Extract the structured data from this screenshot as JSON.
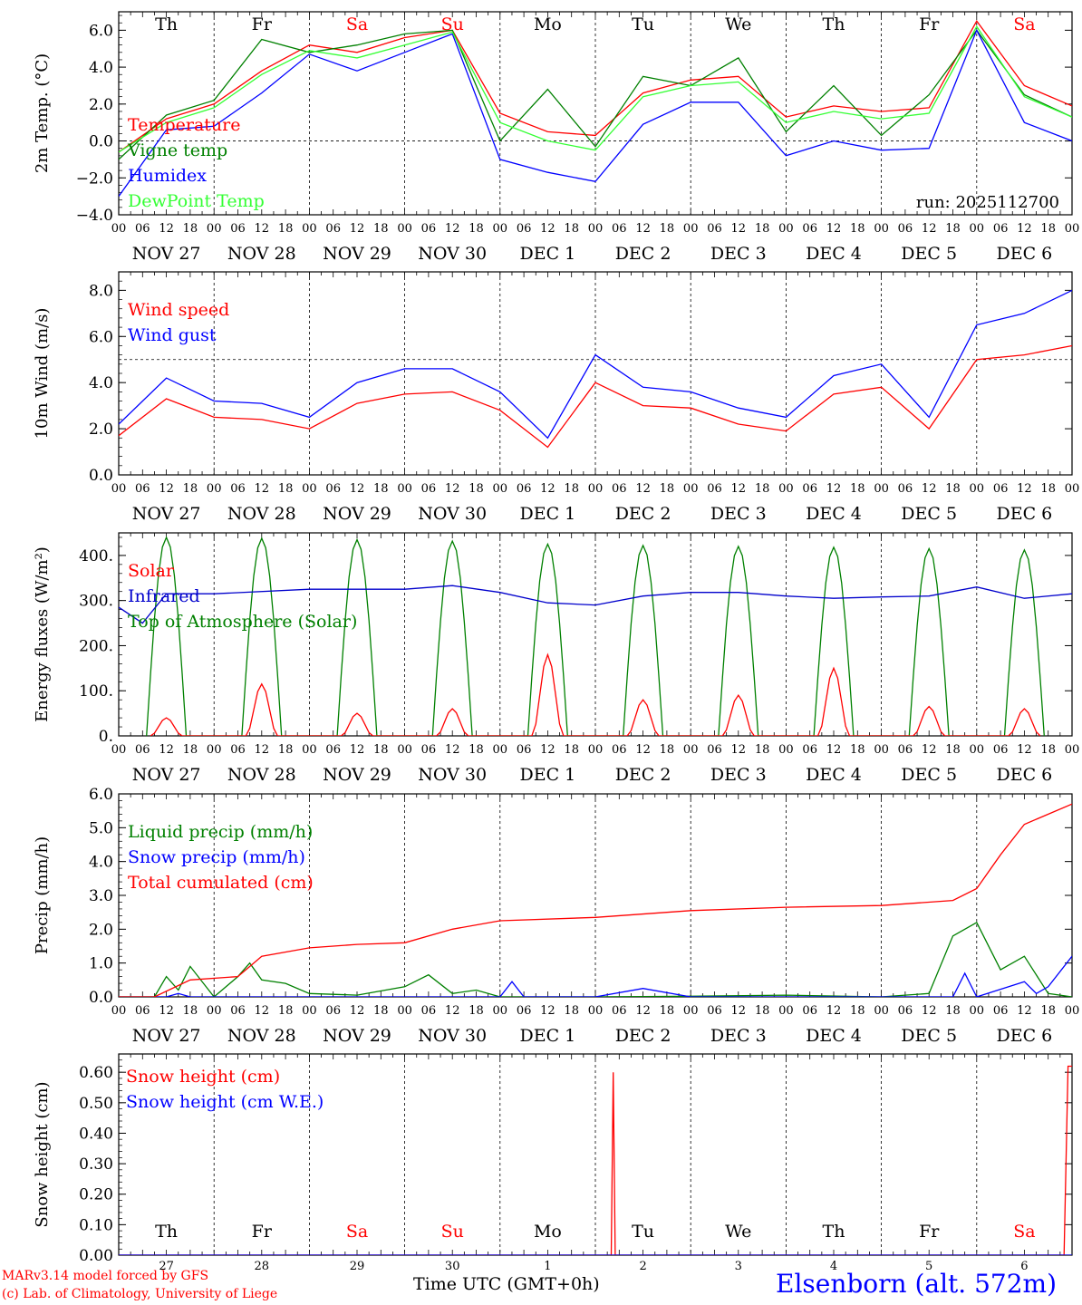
{
  "chart_data": [
    {
      "id": "temp",
      "type": "line",
      "ylabel": "2m Temp. (°C)",
      "ylim": [
        -4.0,
        7.0
      ],
      "yticks": [
        -4,
        -2,
        0,
        2,
        4,
        6
      ],
      "ytick_labels": [
        "−4.0",
        "−2.0",
        "0.0",
        "2.0",
        "4.0",
        "6.0"
      ],
      "ref_line": 0.0,
      "day_labels": [
        "Th",
        "Fr",
        "Sa",
        "Su",
        "Mo",
        "Tu",
        "We",
        "Th",
        "Fr",
        "Sa"
      ],
      "weekend_days": [
        2,
        3,
        9
      ],
      "date_labels": [
        "NOV 27",
        "NOV 28",
        "NOV 29",
        "NOV 30",
        "DEC  1",
        "DEC  2",
        "DEC  3",
        "DEC  4",
        "DEC  5",
        "DEC  6"
      ],
      "hour_labels": [
        "00",
        "06",
        "12",
        "18"
      ],
      "annotation": "run: 2025112700",
      "x_hours": [
        0,
        12,
        24,
        36,
        48,
        60,
        72,
        84,
        96,
        108,
        120,
        132,
        144,
        156,
        168,
        180,
        192,
        204,
        216,
        228,
        240
      ],
      "series": [
        {
          "name": "Temperature",
          "color": "#ff0000",
          "values": [
            -0.6,
            1.2,
            2.0,
            3.8,
            5.2,
            4.8,
            5.6,
            6.0,
            1.5,
            0.5,
            0.3,
            2.6,
            3.3,
            3.5,
            1.3,
            1.9,
            1.6,
            1.8,
            6.5,
            3.0,
            1.9
          ]
        },
        {
          "name": "Vigne temp",
          "color": "#008000",
          "values": [
            -1.0,
            1.4,
            2.2,
            5.5,
            4.8,
            5.2,
            5.8,
            6.0,
            0.0,
            2.8,
            -0.3,
            3.5,
            3.0,
            4.5,
            0.5,
            3.0,
            0.3,
            2.5,
            6.0,
            2.5,
            1.3
          ]
        },
        {
          "name": "Humidex",
          "color": "#0000ff",
          "values": [
            -3.0,
            0.6,
            0.8,
            2.6,
            4.7,
            3.8,
            4.8,
            5.8,
            -1.0,
            -1.7,
            -2.2,
            0.9,
            2.1,
            2.1,
            -0.8,
            0.0,
            -0.5,
            -0.4,
            6.0,
            1.0,
            0.0
          ]
        },
        {
          "name": "DewPoint Temp",
          "color": "#33ff33",
          "values": [
            -0.6,
            1.0,
            1.8,
            3.6,
            4.9,
            4.5,
            5.2,
            5.9,
            1.0,
            0.0,
            -0.5,
            2.4,
            3.0,
            3.2,
            1.0,
            1.6,
            1.2,
            1.5,
            6.2,
            2.4,
            1.3
          ]
        }
      ]
    },
    {
      "id": "wind",
      "type": "line",
      "ylabel": "10m Wind (m/s)",
      "ylim": [
        0.0,
        8.8
      ],
      "yticks": [
        0,
        2,
        4,
        6,
        8
      ],
      "ytick_labels": [
        "0.0",
        "2.0",
        "4.0",
        "6.0",
        "8.0"
      ],
      "ref_line": 5.0,
      "date_labels": [
        "NOV 27",
        "NOV 28",
        "NOV 29",
        "NOV 30",
        "DEC  1",
        "DEC  2",
        "DEC  3",
        "DEC  4",
        "DEC  5",
        "DEC  6"
      ],
      "hour_labels": [
        "00",
        "06",
        "12",
        "18"
      ],
      "x_hours": [
        0,
        12,
        24,
        36,
        48,
        60,
        72,
        84,
        96,
        108,
        120,
        132,
        144,
        156,
        168,
        180,
        192,
        204,
        216,
        228,
        240
      ],
      "series": [
        {
          "name": "Wind speed",
          "color": "#ff0000",
          "values": [
            1.7,
            3.3,
            2.5,
            2.4,
            2.0,
            3.1,
            3.5,
            3.6,
            2.8,
            1.2,
            4.0,
            3.0,
            2.9,
            2.2,
            1.9,
            3.5,
            3.8,
            2.0,
            5.0,
            5.2,
            5.6
          ]
        },
        {
          "name": "Wind gust",
          "color": "#0000ff",
          "values": [
            2.2,
            4.2,
            3.2,
            3.1,
            2.5,
            4.0,
            4.6,
            4.6,
            3.6,
            1.6,
            5.2,
            3.8,
            3.6,
            2.9,
            2.5,
            4.3,
            4.8,
            2.5,
            6.5,
            7.0,
            8.0
          ]
        }
      ]
    },
    {
      "id": "flux",
      "type": "line",
      "ylabel": "Energy fluxes (W/m²)",
      "ylim": [
        0,
        450
      ],
      "yticks": [
        0,
        100,
        200,
        300,
        400
      ],
      "ytick_labels": [
        "0.",
        "100.",
        "200.",
        "300.",
        "400."
      ],
      "date_labels": [
        "NOV 27",
        "NOV 28",
        "NOV 29",
        "NOV 30",
        "DEC  1",
        "DEC  2",
        "DEC  3",
        "DEC  4",
        "DEC  5",
        "DEC  6"
      ],
      "hour_labels": [
        "00",
        "06",
        "12",
        "18"
      ],
      "daily_peaks": {
        "Solar": [
          40,
          115,
          50,
          60,
          180,
          80,
          90,
          150,
          65,
          60
        ],
        "Top of Atmosphere (Solar)": [
          440,
          438,
          435,
          432,
          425,
          422,
          420,
          418,
          415,
          412
        ]
      },
      "series": [
        {
          "name": "Solar",
          "color": "#ff0000"
        },
        {
          "name": "Infrared",
          "color": "#0000cc",
          "x_hours": [
            0,
            6,
            12,
            24,
            48,
            72,
            84,
            96,
            108,
            120,
            132,
            144,
            156,
            168,
            180,
            192,
            204,
            216,
            228,
            240
          ],
          "values": [
            285,
            250,
            315,
            315,
            325,
            325,
            333,
            318,
            295,
            290,
            310,
            318,
            318,
            310,
            305,
            308,
            310,
            330,
            305,
            315
          ]
        }
      ]
    },
    {
      "id": "precip",
      "type": "line",
      "ylabel": "Precip (mm/h)",
      "ylim": [
        0.0,
        6.0
      ],
      "yticks": [
        0,
        1,
        2,
        3,
        4,
        5,
        6
      ],
      "ytick_labels": [
        "0.0",
        "1.0",
        "2.0",
        "3.0",
        "4.0",
        "5.0",
        "6.0"
      ],
      "date_labels": [
        "NOV 27",
        "NOV 28",
        "NOV 29",
        "NOV 30",
        "DEC  1",
        "DEC  2",
        "DEC  3",
        "DEC  4",
        "DEC  5",
        "DEC  6"
      ],
      "hour_labels": [
        "00",
        "06",
        "12",
        "18"
      ],
      "series": [
        {
          "name": "Liquid precip (mm/h)",
          "color": "#008000",
          "x_hours": [
            0,
            9,
            12,
            15,
            18,
            24,
            30,
            33,
            36,
            42,
            48,
            60,
            72,
            78,
            84,
            90,
            96,
            120,
            144,
            168,
            192,
            198,
            204,
            210,
            216,
            222,
            228,
            234,
            240
          ],
          "values": [
            0,
            0,
            0.6,
            0.2,
            0.9,
            0,
            0.6,
            1.0,
            0.5,
            0.4,
            0.1,
            0.05,
            0.3,
            0.65,
            0.1,
            0.2,
            0,
            0,
            0.02,
            0.05,
            0,
            0.05,
            0.1,
            1.8,
            2.2,
            0.8,
            1.2,
            0.1,
            0
          ]
        },
        {
          "name": "Snow precip (mm/h)",
          "color": "#0000ff",
          "x_hours": [
            0,
            12,
            15,
            18,
            96,
            99,
            102,
            120,
            132,
            144,
            192,
            210,
            213,
            216,
            228,
            231,
            234,
            240
          ],
          "values": [
            0,
            0,
            0.1,
            0,
            0,
            0.45,
            0,
            0,
            0.25,
            0,
            0,
            0,
            0.7,
            0,
            0.45,
            0.1,
            0.3,
            1.2
          ]
        },
        {
          "name": "Total cumulated (cm)",
          "color": "#ff0000",
          "x_hours": [
            0,
            9,
            18,
            30,
            36,
            48,
            60,
            72,
            84,
            96,
            120,
            144,
            168,
            192,
            210,
            216,
            222,
            228,
            240
          ],
          "values": [
            0,
            0,
            0.5,
            0.6,
            1.2,
            1.45,
            1.55,
            1.6,
            2.0,
            2.25,
            2.35,
            2.55,
            2.65,
            2.7,
            2.85,
            3.2,
            4.2,
            5.1,
            5.7
          ]
        }
      ]
    },
    {
      "id": "snow",
      "type": "line",
      "ylabel": "Snow height (cm)",
      "ylim": [
        0.0,
        0.66
      ],
      "yticks": [
        0,
        0.1,
        0.2,
        0.3,
        0.4,
        0.5,
        0.6
      ],
      "ytick_labels": [
        "0.00",
        "0.10",
        "0.20",
        "0.30",
        "0.40",
        "0.50",
        "0.60"
      ],
      "day_labels": [
        "Th",
        "Fr",
        "Sa",
        "Su",
        "Mo",
        "Tu",
        "We",
        "Th",
        "Fr",
        "Sa"
      ],
      "weekend_days": [
        2,
        3,
        9
      ],
      "day_numbers": [
        "27",
        "28",
        "29",
        "30",
        "1",
        "2",
        "3",
        "4",
        "5",
        "6"
      ],
      "series": [
        {
          "name": "Snow height (cm)",
          "color": "#ff0000",
          "x_hours": [
            0,
            124,
            124.5,
            125,
            238,
            239,
            240
          ],
          "values": [
            0,
            0,
            0.6,
            0,
            0,
            0.62,
            0.62
          ]
        },
        {
          "name": "Snow height (cm W.E.)",
          "color": "#0000ff",
          "x_hours": [
            0,
            240
          ],
          "values": [
            0,
            0
          ]
        }
      ]
    }
  ],
  "footer": {
    "credit_line1": "MARv3.14 model forced by GFS",
    "credit_line2": "(c) Lab. of Climatology, University of Liege",
    "x_title": "Time UTC (GMT+0h)",
    "station": "Elsenborn (alt. 572m)"
  }
}
